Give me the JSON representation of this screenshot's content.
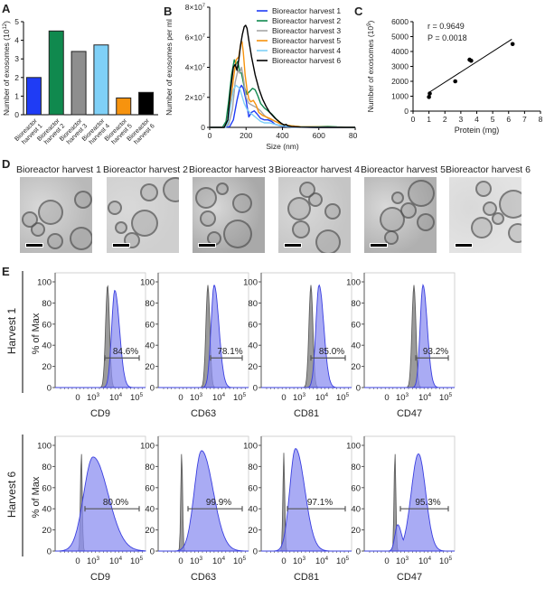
{
  "panels": {
    "A": "A",
    "B": "B",
    "C": "C",
    "D": "D",
    "E": "E"
  },
  "chart_data": [
    {
      "id": "A",
      "type": "bar",
      "title": "",
      "xlabel": "",
      "ylabel": "Number of exosomes (10^12)",
      "ylabel_main": "Number of exosomes (10",
      "ylabel_sup": "12",
      "ylabel_end": ")",
      "ylim": [
        0,
        5
      ],
      "yticks": [
        "0",
        "1",
        "2",
        "3",
        "4",
        "5"
      ],
      "categories": [
        "Bioreactor harvest 1",
        "Bioreactor harvest 2",
        "Bioreactor harvest 3",
        "Bioreactor harvest 4",
        "Bioreactor harvest 5",
        "Bioreactor harvest 6"
      ],
      "category_lines": [
        [
          "Bioreactor",
          "harvest 1"
        ],
        [
          "Bioreactor",
          "harvest 2"
        ],
        [
          "Bioreactor",
          "harvest 3"
        ],
        [
          "Bioreactor",
          "harvest 4"
        ],
        [
          "Bioreactor",
          "harvest 5"
        ],
        [
          "Bioreactor",
          "harvest 6"
        ]
      ],
      "values": [
        2.0,
        4.5,
        3.4,
        3.75,
        0.9,
        1.2
      ],
      "colors": [
        "#1f3cf5",
        "#10894e",
        "#8e8e8e",
        "#7fd0f7",
        "#f7930e",
        "#000000"
      ]
    },
    {
      "id": "B",
      "type": "line",
      "xlabel": "Size (nm)",
      "ylabel": "Number of exosomes per ml",
      "xlim": [
        0,
        800
      ],
      "ylim": [
        0,
        80000000
      ],
      "xticks": [
        "0",
        "200",
        "400",
        "600",
        "800"
      ],
      "yticks": [
        {
          "base": "0",
          "exp": ""
        },
        {
          "base": "2×10",
          "exp": "7"
        },
        {
          "base": "4×10",
          "exp": "7"
        },
        {
          "base": "6×10",
          "exp": "7"
        },
        {
          "base": "8×10",
          "exp": "7"
        }
      ],
      "legend_position": "top-right",
      "series": [
        {
          "name": "Bioreactor harvest 1",
          "color": "#1f3cf5",
          "x": [
            0,
            80,
            110,
            130,
            150,
            165,
            175,
            185,
            200,
            215,
            230,
            245,
            260,
            280,
            300,
            320,
            340,
            360,
            400,
            450,
            500,
            600,
            700,
            800
          ],
          "y": [
            0,
            0,
            0.5,
            5,
            18,
            26,
            28,
            26,
            18,
            7,
            10,
            11,
            9,
            6,
            5,
            5,
            4,
            2,
            0.8,
            0.3,
            0.1,
            0,
            0,
            0
          ]
        },
        {
          "name": "Bioreactor harvest 2",
          "color": "#10894e",
          "x": [
            0,
            70,
            90,
            105,
            120,
            135,
            145,
            155,
            165,
            175,
            190,
            205,
            220,
            235,
            250,
            265,
            280,
            300,
            320,
            340,
            370,
            400,
            450,
            500,
            600,
            650,
            700,
            800
          ],
          "y": [
            0,
            0,
            4,
            18,
            35,
            45,
            42,
            44,
            37,
            36,
            27,
            22,
            24,
            26,
            25,
            21,
            16,
            13,
            11,
            9,
            5,
            2,
            1,
            0.5,
            0.5,
            0.6,
            0.3,
            0
          ]
        },
        {
          "name": "Bioreactor harvest 3",
          "color": "#a6a6a6",
          "x": [
            0,
            85,
            105,
            125,
            140,
            155,
            165,
            175,
            185,
            200,
            215,
            230,
            245,
            260,
            280,
            300,
            320,
            340,
            360,
            400,
            450,
            500,
            600,
            800
          ],
          "y": [
            0,
            0,
            2,
            12,
            30,
            38,
            36,
            40,
            33,
            20,
            16,
            15,
            14,
            13,
            11,
            8,
            6,
            5,
            4,
            1.5,
            0.5,
            0.2,
            0,
            0
          ]
        },
        {
          "name": "Bioreactor harvest 5",
          "color": "#f7930e",
          "x": [
            0,
            85,
            100,
            115,
            130,
            145,
            160,
            170,
            178,
            185,
            195,
            205,
            215,
            225,
            240,
            255,
            270,
            290,
            310,
            330,
            360,
            400,
            450,
            500,
            600,
            800
          ],
          "y": [
            0,
            0,
            3,
            15,
            32,
            45,
            47,
            55,
            57,
            50,
            35,
            25,
            19,
            17,
            18,
            15,
            10,
            8,
            7,
            6,
            4,
            2,
            1,
            0.5,
            0.3,
            0
          ]
        },
        {
          "name": "Bioreactor harvest 4",
          "color": "#7fd0f7",
          "x": [
            0,
            85,
            100,
            115,
            130,
            145,
            155,
            165,
            175,
            190,
            205,
            220,
            240,
            260,
            280,
            300,
            330,
            360,
            400,
            450,
            800
          ],
          "y": [
            0,
            0,
            3,
            14,
            25,
            28,
            27,
            26,
            22,
            16,
            12,
            10,
            8,
            6,
            4,
            3,
            3,
            2,
            1,
            0.3,
            0
          ]
        },
        {
          "name": "Bioreactor harvest 6",
          "color": "#000000",
          "x": [
            0,
            80,
            100,
            115,
            130,
            140,
            150,
            160,
            170,
            180,
            190,
            198,
            205,
            215,
            230,
            250,
            270,
            290,
            310,
            330,
            360,
            390,
            410,
            420,
            430,
            450,
            500,
            600,
            800
          ],
          "y": [
            0,
            0,
            5,
            25,
            40,
            42,
            38,
            45,
            55,
            62,
            67,
            68,
            66,
            58,
            47,
            35,
            26,
            19,
            14,
            10,
            6,
            3,
            1.5,
            2,
            1,
            0.5,
            0.2,
            0,
            0
          ]
        }
      ]
    },
    {
      "id": "C",
      "type": "scatter",
      "xlabel": "Protein (mg)",
      "ylabel_main": "Number of exosomes (10",
      "ylabel_sup": "9",
      "ylabel_end": ")",
      "xlim": [
        0,
        8
      ],
      "ylim": [
        0,
        6000
      ],
      "xticks": [
        "0",
        "1",
        "2",
        "3",
        "4",
        "5",
        "6",
        "7",
        "8"
      ],
      "yticks": [
        "0",
        "1000",
        "2000",
        "3000",
        "4000",
        "5000",
        "6000"
      ],
      "points": [
        {
          "x": 1.0,
          "y": 950
        },
        {
          "x": 1.05,
          "y": 1180
        },
        {
          "x": 2.65,
          "y": 2000
        },
        {
          "x": 3.55,
          "y": 3450
        },
        {
          "x": 3.65,
          "y": 3380
        },
        {
          "x": 6.25,
          "y": 4500
        }
      ],
      "fit_line": {
        "x": [
          1.0,
          6.2
        ],
        "y": [
          1250,
          4820
        ]
      },
      "annotations": [
        "r =  0.9649",
        "P = 0.0018"
      ]
    }
  ],
  "em_panel": {
    "label": "D",
    "images": [
      {
        "title": "Bioreactor harvest 1"
      },
      {
        "title": "Bioreactor harvest 2"
      },
      {
        "title": "Bioreactor harvest 3"
      },
      {
        "title": "Bioreactor harvest 4"
      },
      {
        "title": "Bioreactor harvest 5"
      },
      {
        "title": "Bioreactor harvest 6"
      }
    ]
  },
  "flow_panel": {
    "label": "E",
    "ylabel": "% of Max",
    "yticks": [
      "0",
      "20",
      "40",
      "60",
      "80",
      "100"
    ],
    "xticks": [
      {
        "b": "0",
        "e": ""
      },
      {
        "b": "10",
        "e": "3"
      },
      {
        "b": "10",
        "e": "4"
      },
      {
        "b": "10",
        "e": "5"
      }
    ],
    "fill_color": "#8c8ff0",
    "line_color": "#3a3fe0",
    "control_color": "#8a8a8a",
    "rows": [
      {
        "label": "Harvest 1",
        "plots": [
          {
            "marker": "CD9",
            "gate": "84.6%",
            "gate_range": [
              0.55,
              0.93
            ],
            "ctrl_peak": 0.58,
            "ctrl_height": 97,
            "sample_peak": 0.66,
            "sample_height": 92,
            "sample_width": 0.05,
            "profile": "narrow"
          },
          {
            "marker": "CD63",
            "gate": "78.1%",
            "gate_range": [
              0.58,
              0.93
            ],
            "ctrl_peak": 0.55,
            "ctrl_height": 97,
            "sample_peak": 0.62,
            "sample_height": 97,
            "sample_width": 0.05,
            "profile": "narrow"
          },
          {
            "marker": "CD81",
            "gate": "85.0%",
            "gate_range": [
              0.55,
              0.93
            ],
            "ctrl_peak": 0.55,
            "ctrl_height": 97,
            "sample_peak": 0.64,
            "sample_height": 97,
            "sample_width": 0.05,
            "profile": "narrow"
          },
          {
            "marker": "CD47",
            "gate": "93.2%",
            "gate_range": [
              0.57,
              0.93
            ],
            "ctrl_peak": 0.55,
            "ctrl_height": 97,
            "sample_peak": 0.65,
            "sample_height": 97,
            "sample_width": 0.045,
            "profile": "narrow"
          }
        ]
      },
      {
        "label": "Harvest 6",
        "plots": [
          {
            "marker": "CD9",
            "gate": "80.0%",
            "gate_range": [
              0.33,
              0.93
            ],
            "ctrl_peak": 0.29,
            "ctrl_height": 93,
            "sample_peak": 0.42,
            "sample_height": 89,
            "sample_width": 0.13,
            "profile": "broad"
          },
          {
            "marker": "CD63",
            "gate": "99.9%",
            "gate_range": [
              0.33,
              0.93
            ],
            "ctrl_peak": 0.26,
            "ctrl_height": 93,
            "sample_peak": 0.48,
            "sample_height": 95,
            "sample_width": 0.1,
            "profile": "broad"
          },
          {
            "marker": "CD81",
            "gate": "97.1%",
            "gate_range": [
              0.29,
              0.93
            ],
            "ctrl_peak": 0.25,
            "ctrl_height": 93,
            "sample_peak": 0.38,
            "sample_height": 97,
            "sample_width": 0.08,
            "profile": "broad"
          },
          {
            "marker": "CD47",
            "gate": "95.3%",
            "gate_range": [
              0.4,
              0.93
            ],
            "ctrl_peak": 0.34,
            "ctrl_height": 93,
            "sample_peak": 0.6,
            "sample_height": 92,
            "sample_width": 0.08,
            "profile": "bimodal"
          }
        ]
      }
    ]
  }
}
